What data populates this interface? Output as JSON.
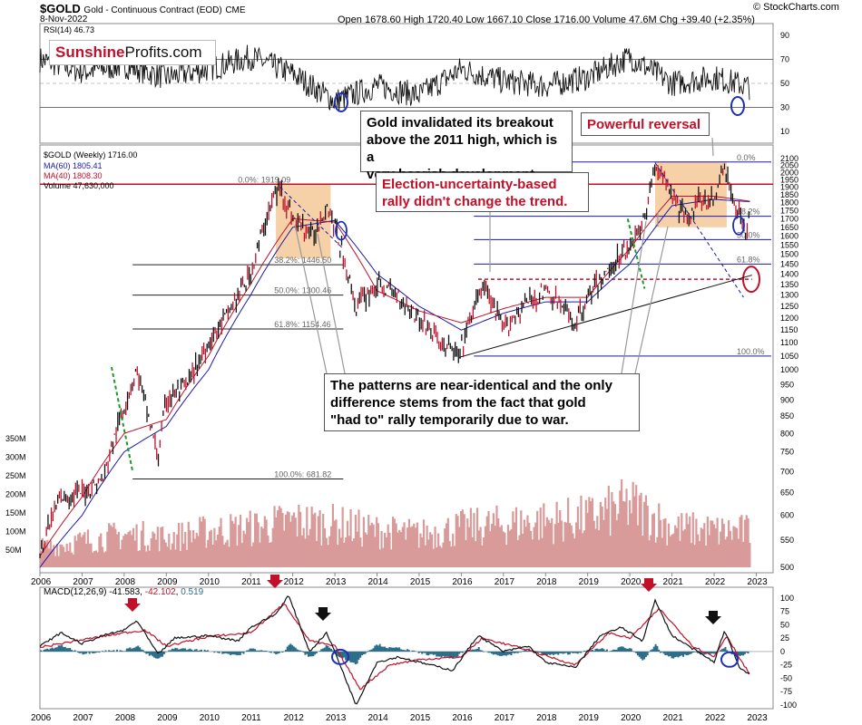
{
  "header": {
    "symbol": "$GOLD",
    "name": "Gold - Continuous Contract (EOD)",
    "exchange": "CME",
    "date": "8-Nov-2022",
    "ohlc": "Open 1678.60  High 1720.40  Low 1667.10  Close 1716.00  Volume 47.6M  Chg +39.40 (+2.35%)",
    "stockcharts": "© StockCharts.com"
  },
  "logo": {
    "part1": "Sunshine",
    "part2": "Profits.com"
  },
  "callouts": {
    "invalidated": [
      "Gold invalidated its breakout",
      "above the 2011 high, which is a",
      "very bearish development."
    ],
    "powerful": "Powerful reversal",
    "election": [
      "Election-uncertainty-based",
      "rally didn't change the trend."
    ],
    "patterns": [
      "The patterns are near-identical and the only",
      "difference stems from the fact that gold",
      "\"had to\" rally temporarily due to war."
    ]
  },
  "colors": {
    "accent": "#c0102a",
    "ma60": "#1a1aa8",
    "ma40": "#c0102a",
    "price": "#000000",
    "volume": "#d99a9a",
    "hist": "#2a6e8a",
    "box": "#f3c18b",
    "circle": "#1c2fb5"
  },
  "chart_data": [
    {
      "type": "line",
      "title": "RSI(14) 46.73",
      "y_ticks": [
        10,
        30,
        50,
        70,
        90
      ],
      "ylim": [
        0,
        100
      ],
      "x": [
        2006,
        2007,
        2008,
        2009,
        2010,
        2011,
        2012,
        2013,
        2014,
        2015,
        2016,
        2017,
        2018,
        2019,
        2020,
        2021,
        2022,
        2022.85
      ],
      "values": [
        70,
        60,
        65,
        55,
        62,
        72,
        58,
        35,
        48,
        40,
        62,
        52,
        48,
        55,
        72,
        50,
        55,
        47
      ]
    },
    {
      "type": "line",
      "title": "$GOLD (Weekly) 1716.00",
      "legend": [
        "$GOLD (Weekly) 1716.00",
        "MA(60) 1805.41",
        "MA(40) 1808.30",
        "Volume 47,630,000"
      ],
      "x_ticks": [
        "2006",
        "2007",
        "2008",
        "2009",
        "2010",
        "2011",
        "2012",
        "2013",
        "2014",
        "2015",
        "2016",
        "2017",
        "2018",
        "2019",
        "2020",
        "2021",
        "2022",
        "2023"
      ],
      "y_ticks_right": [
        500,
        550,
        600,
        650,
        700,
        750,
        800,
        850,
        900,
        950,
        1000,
        1050,
        1100,
        1150,
        1200,
        1250,
        1300,
        1350,
        1400,
        1450,
        1500,
        1550,
        1600,
        1650,
        1700,
        1750,
        1800,
        1850,
        1900,
        1950,
        2000,
        2050,
        2100
      ],
      "volume_ticks": [
        "50M",
        "100M",
        "150M",
        "200M",
        "250M",
        "300M",
        "350M"
      ],
      "series": [
        {
          "name": "$GOLD (Weekly) 1716.00",
          "x": [
            2006,
            2006.5,
            2007,
            2007.5,
            2008,
            2008.3,
            2008.8,
            2009,
            2009.5,
            2010,
            2010.5,
            2011,
            2011.5,
            2011.7,
            2012,
            2012.5,
            2012.8,
            2013,
            2013.3,
            2013.5,
            2014,
            2014.5,
            2015,
            2015.5,
            2015.95,
            2016.5,
            2017,
            2017.5,
            2018,
            2018.7,
            2019,
            2019.5,
            2020,
            2020.3,
            2020.6,
            2021,
            2021.3,
            2021.6,
            2022,
            2022.2,
            2022.5,
            2022.75,
            2022.85
          ],
          "values": [
            530,
            640,
            650,
            680,
            880,
            1000,
            730,
            900,
            950,
            1100,
            1230,
            1400,
            1800,
            1900,
            1700,
            1600,
            1790,
            1650,
            1400,
            1250,
            1350,
            1300,
            1200,
            1100,
            1050,
            1350,
            1150,
            1260,
            1320,
            1180,
            1290,
            1420,
            1550,
            1650,
            2050,
            1850,
            1700,
            1800,
            1820,
            2040,
            1800,
            1630,
            1716
          ]
        },
        {
          "name": "MA(60) 1805.41",
          "x": [
            2006,
            2007,
            2008,
            2009,
            2010,
            2011,
            2012,
            2013,
            2014,
            2015,
            2016,
            2017,
            2018,
            2019,
            2020,
            2021,
            2022,
            2022.85
          ],
          "values": [
            500,
            600,
            750,
            820,
            1000,
            1300,
            1650,
            1690,
            1400,
            1250,
            1150,
            1220,
            1270,
            1270,
            1450,
            1780,
            1820,
            1805
          ]
        },
        {
          "name": "MA(40) 1808.30",
          "x": [
            2006,
            2007,
            2008,
            2009,
            2010,
            2011,
            2012,
            2013,
            2014,
            2015,
            2016,
            2017,
            2018,
            2019,
            2020,
            2021,
            2022,
            2022.85
          ],
          "values": [
            520,
            640,
            800,
            840,
            1050,
            1350,
            1700,
            1680,
            1320,
            1230,
            1180,
            1240,
            1290,
            1290,
            1530,
            1840,
            1840,
            1808
          ]
        }
      ],
      "fibonacci": [
        {
          "label": "0.0%: 1919.09",
          "y": 1919.09
        },
        {
          "label": "38.2%: 1446.50",
          "y": 1446.5
        },
        {
          "label": "50.0%: 1300.46",
          "y": 1300.46
        },
        {
          "label": "61.8%: 1154.46",
          "y": 1154.46
        },
        {
          "label": "100.0%: 681.82",
          "y": 681.82
        }
      ],
      "fib_right": [
        "0.0%",
        "38.2%",
        "50.0%",
        "61.8%",
        "100.0%"
      ],
      "volume": [
        60,
        80,
        100,
        90,
        110,
        120,
        140,
        130,
        110,
        100,
        120,
        130,
        140,
        150,
        190,
        120,
        110
      ]
    },
    {
      "type": "line",
      "title": "MACD(12,26,9)",
      "legend": [
        "MACD(12,26,9) -41.583",
        "-42.102",
        "0.519"
      ],
      "y_ticks": [
        -100,
        -75,
        -50,
        -25,
        0,
        25,
        50,
        75,
        100
      ],
      "ylim": [
        -100,
        110
      ],
      "series": [
        {
          "name": "MACD(12,26,9) -41.583",
          "x": [
            2006,
            2006.5,
            2007,
            2007.5,
            2008,
            2008.3,
            2008.8,
            2009.2,
            2010,
            2010.7,
            2011,
            2011.6,
            2011.9,
            2012.4,
            2012.8,
            2013,
            2013.3,
            2013.5,
            2014,
            2014.5,
            2015,
            2015.8,
            2016.4,
            2017,
            2017.6,
            2018,
            2018.7,
            2019.3,
            2019.8,
            2020.3,
            2020.6,
            2021,
            2021.5,
            2022,
            2022.25,
            2022.6,
            2022.85
          ],
          "values": [
            10,
            35,
            15,
            30,
            40,
            58,
            -5,
            25,
            30,
            20,
            45,
            70,
            105,
            0,
            35,
            0,
            -60,
            -100,
            -20,
            -10,
            -20,
            -35,
            30,
            0,
            10,
            -20,
            -30,
            30,
            45,
            20,
            95,
            30,
            5,
            -20,
            40,
            -30,
            -42
          ]
        },
        {
          "name": "-42.102",
          "x": [
            2006,
            2007,
            2008,
            2008.5,
            2009,
            2010,
            2011,
            2011.8,
            2012.4,
            2013,
            2013.6,
            2014.3,
            2015,
            2016,
            2016.5,
            2017.5,
            2018.7,
            2019.5,
            2020,
            2020.7,
            2021.5,
            2022,
            2022.3,
            2022.7,
            2022.85
          ],
          "values": [
            8,
            22,
            35,
            40,
            10,
            28,
            35,
            90,
            20,
            10,
            -70,
            -25,
            -15,
            -10,
            25,
            5,
            -25,
            35,
            25,
            80,
            10,
            -10,
            30,
            -25,
            -42
          ]
        }
      ],
      "histogram_note": "0.519"
    }
  ]
}
